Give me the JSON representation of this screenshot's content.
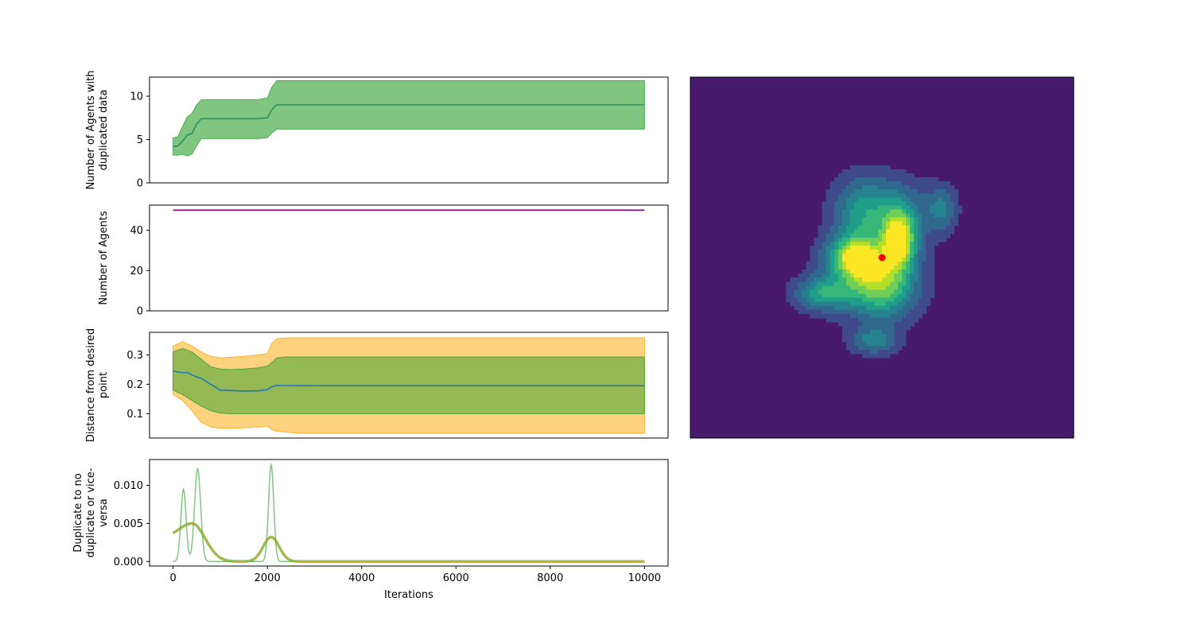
{
  "colors": {
    "green_band": "#2ca02c",
    "orange_band": "#ffa500",
    "mean_line": "#1f77b4",
    "agents_line": "#800080",
    "olive_line": "#bcbd22",
    "marker": "#ff0000",
    "contour_background": "#481a6c"
  },
  "chart_data": [
    {
      "type": "line",
      "panel": "duplicated-agents",
      "ylabel": [
        "Number of Agents with",
        "duplicated data"
      ],
      "xlim": [
        -500,
        10500
      ],
      "ylim": [
        0,
        12.2
      ],
      "yticks": [
        0,
        5,
        10
      ],
      "xticks_visible": false,
      "series": [
        {
          "kind": "mean",
          "x": [
            0,
            100,
            200,
            300,
            400,
            500,
            600,
            800,
            1000,
            1200,
            1500,
            1800,
            2000,
            2100,
            2200,
            2400,
            3000,
            10000
          ],
          "values": [
            4.2,
            4.25,
            4.8,
            5.5,
            5.7,
            6.8,
            7.4,
            7.4,
            7.4,
            7.4,
            7.4,
            7.4,
            7.5,
            8.5,
            9.0,
            9.0,
            9.0,
            9.0
          ]
        },
        {
          "kind": "band",
          "x": [
            0,
            100,
            200,
            300,
            400,
            500,
            600,
            800,
            1000,
            1200,
            1500,
            1800,
            2000,
            2100,
            2200,
            2400,
            3000,
            10000
          ],
          "lower": [
            3.2,
            3.2,
            3.3,
            3.1,
            3.3,
            4.3,
            5.1,
            5.1,
            5.1,
            5.1,
            5.1,
            5.1,
            5.2,
            5.8,
            6.2,
            6.2,
            6.2,
            6.2
          ],
          "upper": [
            5.2,
            5.3,
            6.5,
            7.6,
            8.0,
            9.0,
            9.6,
            9.6,
            9.6,
            9.6,
            9.6,
            9.6,
            9.8,
            11.1,
            11.8,
            11.8,
            11.8,
            11.8
          ]
        }
      ]
    },
    {
      "type": "line",
      "panel": "number-of-agents",
      "ylabel": [
        "Number of Agents"
      ],
      "xlim": [
        -500,
        10500
      ],
      "ylim": [
        0,
        52.5
      ],
      "yticks": [
        0,
        20,
        40
      ],
      "xticks_visible": false,
      "series": [
        {
          "kind": "line",
          "x": [
            0,
            10000
          ],
          "values": [
            50,
            50
          ]
        }
      ]
    },
    {
      "type": "line",
      "panel": "distance",
      "ylabel": [
        "Distance from desired",
        "point"
      ],
      "xlim": [
        -500,
        10500
      ],
      "ylim": [
        0.017,
        0.377
      ],
      "yticks": [
        0.1,
        0.2,
        0.3
      ],
      "xticks_visible": false,
      "series": [
        {
          "kind": "band",
          "x": [
            0,
            200,
            400,
            600,
            800,
            1000,
            1200,
            1500,
            1800,
            2000,
            2100,
            2200,
            2400,
            2700,
            3000,
            10000
          ],
          "lower": [
            0.165,
            0.145,
            0.11,
            0.07,
            0.055,
            0.05,
            0.05,
            0.052,
            0.055,
            0.058,
            0.045,
            0.04,
            0.037,
            0.033,
            0.033,
            0.033
          ],
          "upper": [
            0.33,
            0.345,
            0.33,
            0.31,
            0.295,
            0.29,
            0.292,
            0.295,
            0.3,
            0.305,
            0.34,
            0.355,
            0.358,
            0.358,
            0.358,
            0.358
          ]
        },
        {
          "kind": "band",
          "x": [
            0,
            200,
            400,
            600,
            800,
            1000,
            1200,
            1500,
            1800,
            2000,
            2100,
            2200,
            2400,
            2700,
            3000,
            10000
          ],
          "lower": [
            0.18,
            0.165,
            0.145,
            0.125,
            0.11,
            0.102,
            0.1,
            0.1,
            0.1,
            0.1,
            0.1,
            0.1,
            0.1,
            0.1,
            0.1,
            0.1
          ],
          "upper": [
            0.31,
            0.322,
            0.31,
            0.285,
            0.26,
            0.252,
            0.25,
            0.252,
            0.256,
            0.262,
            0.275,
            0.29,
            0.293,
            0.293,
            0.293,
            0.293
          ]
        },
        {
          "kind": "mean",
          "x": [
            0,
            100,
            200,
            300,
            400,
            500,
            600,
            700,
            800,
            900,
            1000,
            1200,
            1500,
            1800,
            2000,
            2100,
            2200,
            2500,
            3000,
            10000
          ],
          "values": [
            0.245,
            0.242,
            0.24,
            0.24,
            0.232,
            0.225,
            0.22,
            0.21,
            0.2,
            0.19,
            0.18,
            0.179,
            0.177,
            0.178,
            0.182,
            0.192,
            0.196,
            0.196,
            0.195,
            0.195
          ]
        }
      ]
    },
    {
      "type": "line",
      "panel": "duplicate-switch",
      "ylabel": [
        "Duplicate to no",
        "duplicate or vice-",
        "versa"
      ],
      "xlabel": "Iterations",
      "xlim": [
        -500,
        10500
      ],
      "ylim": [
        -0.0006,
        0.0134
      ],
      "yticks": [
        0.0,
        0.005,
        0.01
      ],
      "ytick_labels": [
        "0.000",
        "0.005",
        "0.010"
      ],
      "xticks": [
        0,
        2000,
        4000,
        6000,
        8000,
        10000
      ],
      "series": [
        {
          "kind": "peaks",
          "peaks": [
            {
              "center": 220,
              "height": 0.0095,
              "width": 55
            },
            {
              "center": 520,
              "height": 0.0122,
              "width": 65
            },
            {
              "center": 2080,
              "height": 0.0127,
              "width": 55
            }
          ]
        },
        {
          "kind": "smooth",
          "peaks": [
            {
              "center": 400,
              "height": 0.005,
              "width": 280
            },
            {
              "center": 2080,
              "height": 0.0032,
              "width": 170
            }
          ],
          "baseline_start": 0.003
        }
      ]
    },
    {
      "type": "heatmap",
      "panel": "density-map",
      "levels": 7,
      "cmap": [
        "#481a6c",
        "#3e4a89",
        "#31688e",
        "#26828e",
        "#1f9e89",
        "#35b779",
        "#6ece58",
        "#b5de2b",
        "#fde725"
      ],
      "peaks": [
        {
          "x": 0.43,
          "y": 0.5,
          "h": 6.0,
          "sx": 0.045,
          "sy": 0.04
        },
        {
          "x": 0.545,
          "y": 0.45,
          "h": 7.0,
          "sx": 0.03,
          "sy": 0.055
        },
        {
          "x": 0.5,
          "y": 0.58,
          "h": 3.8,
          "sx": 0.055,
          "sy": 0.06
        },
        {
          "x": 0.35,
          "y": 0.6,
          "h": 3.6,
          "sx": 0.05,
          "sy": 0.03
        },
        {
          "x": 0.45,
          "y": 0.38,
          "h": 2.2,
          "sx": 0.05,
          "sy": 0.07
        },
        {
          "x": 0.48,
          "y": 0.73,
          "h": 2.6,
          "sx": 0.04,
          "sy": 0.025
        },
        {
          "x": 0.52,
          "y": 0.37,
          "h": 2.2,
          "sx": 0.08,
          "sy": 0.06
        },
        {
          "x": 0.655,
          "y": 0.365,
          "h": 2.0,
          "sx": 0.025,
          "sy": 0.04
        },
        {
          "x": 0.47,
          "y": 0.55,
          "h": 2.5,
          "sx": 0.08,
          "sy": 0.07
        }
      ],
      "marker": {
        "x": 0.5,
        "y": 0.5
      }
    }
  ]
}
